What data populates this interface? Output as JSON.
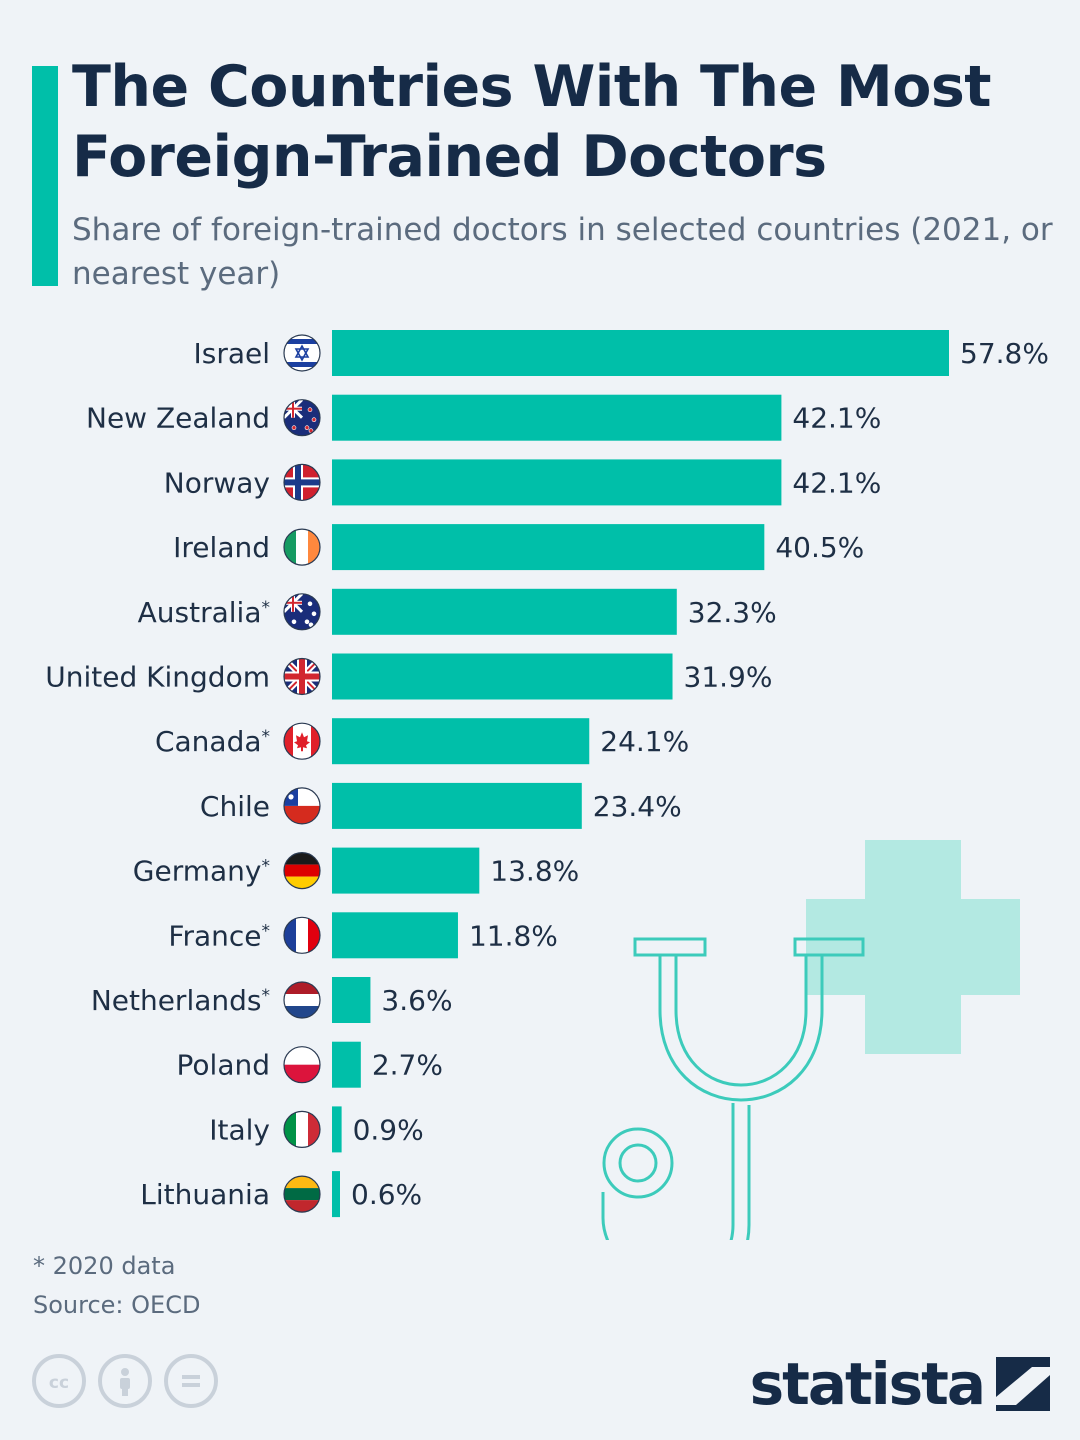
{
  "colors": {
    "accent": "#00bfa9",
    "title": "#162b47",
    "subtitle": "#5b6b7e",
    "text": "#1e2f45",
    "background": "#eff3f7",
    "decor_line": "#3ccbbb",
    "decor_cross": "#b3e9e2"
  },
  "header": {
    "title": "The Countries With The Most Foreign-Trained Doctors",
    "subtitle": "Share of foreign-trained doctors in selected countries (2021, or nearest year)"
  },
  "chart_data": {
    "type": "bar",
    "orientation": "horizontal",
    "categories": [
      "Israel",
      "New Zealand",
      "Norway",
      "Ireland",
      "Australia*",
      "United Kingdom",
      "Canada*",
      "Chile",
      "Germany*",
      "France*",
      "Netherlands*",
      "Poland",
      "Italy",
      "Lithuania"
    ],
    "values": [
      57.8,
      42.1,
      42.1,
      40.5,
      32.3,
      31.9,
      24.1,
      23.4,
      13.8,
      11.8,
      3.6,
      2.7,
      0.9,
      0.6
    ],
    "value_labels": [
      "57.8%",
      "42.1%",
      "42.1%",
      "40.5%",
      "32.3%",
      "31.9%",
      "24.1%",
      "23.4%",
      "13.8%",
      "11.8%",
      "3.6%",
      "2.7%",
      "0.9%",
      "0.6%"
    ],
    "flag_icons": [
      "israel-flag-icon",
      "new-zealand-flag-icon",
      "norway-flag-icon",
      "ireland-flag-icon",
      "australia-flag-icon",
      "united-kingdom-flag-icon",
      "canada-flag-icon",
      "chile-flag-icon",
      "germany-flag-icon",
      "france-flag-icon",
      "netherlands-flag-icon",
      "poland-flag-icon",
      "italy-flag-icon",
      "lithuania-flag-icon"
    ],
    "unit": "%",
    "xlim": [
      0,
      57.8
    ],
    "grid": false,
    "legend": "none"
  },
  "footer": {
    "footnote": "* 2020 data",
    "source": "Source: OECD",
    "license_icons": [
      "creative-commons-icon",
      "attribution-icon",
      "no-derivatives-icon"
    ],
    "brand": "statista",
    "brand_icon": "statista-logo-icon"
  },
  "decoration": [
    "stethoscope-icon",
    "medical-cross-icon"
  ]
}
